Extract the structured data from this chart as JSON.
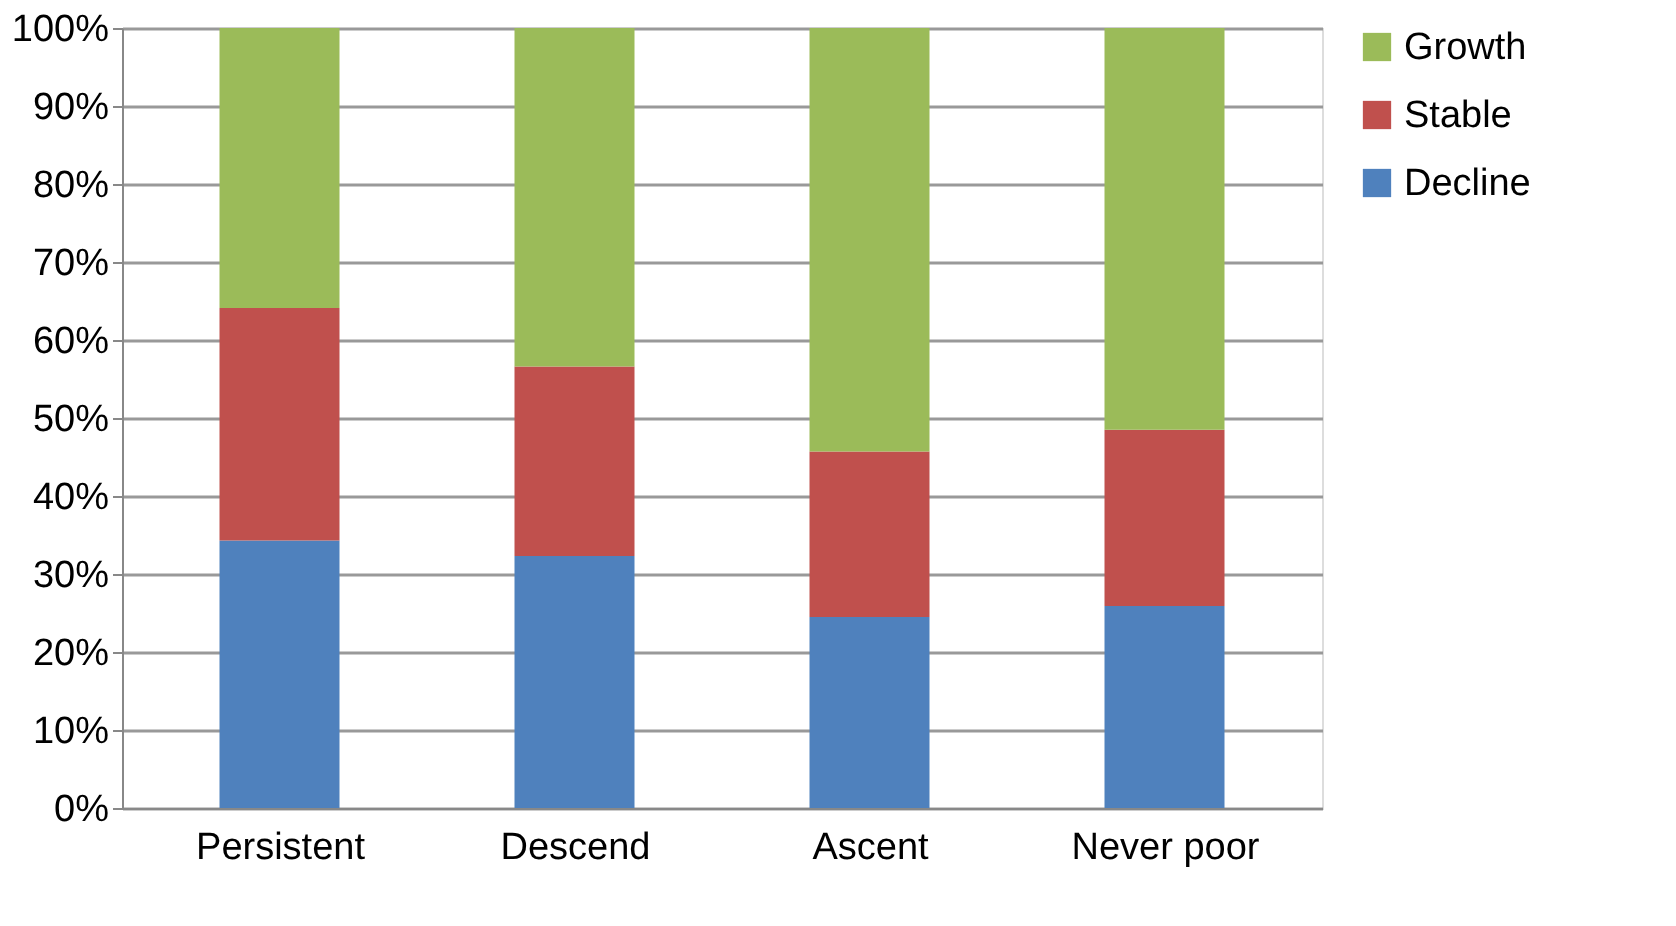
{
  "chart_data": {
    "type": "bar",
    "stacked": true,
    "categories": [
      "Persistent",
      "Descend",
      "Ascent",
      "Never poor"
    ],
    "series": [
      {
        "name": "Decline",
        "color": "#4f81bd",
        "values": [
          34.3,
          32.3,
          24.5,
          25.9
        ]
      },
      {
        "name": "Stable",
        "color": "#c0504d",
        "values": [
          29.8,
          24.3,
          21.2,
          22.6
        ]
      },
      {
        "name": "Growth",
        "color": "#9bbb59",
        "values": [
          35.9,
          43.4,
          54.3,
          51.5
        ]
      }
    ],
    "ylim": [
      0,
      100
    ],
    "yticks": [
      {
        "value": 0,
        "label": "0%"
      },
      {
        "value": 10,
        "label": "10%"
      },
      {
        "value": 20,
        "label": "20%"
      },
      {
        "value": 30,
        "label": "30%"
      },
      {
        "value": 40,
        "label": "40%"
      },
      {
        "value": 50,
        "label": "50%"
      },
      {
        "value": 60,
        "label": "60%"
      },
      {
        "value": 70,
        "label": "70%"
      },
      {
        "value": 80,
        "label": "80%"
      },
      {
        "value": 90,
        "label": "90%"
      },
      {
        "value": 100,
        "label": "100%"
      }
    ],
    "grid": "y",
    "legend": "right"
  }
}
